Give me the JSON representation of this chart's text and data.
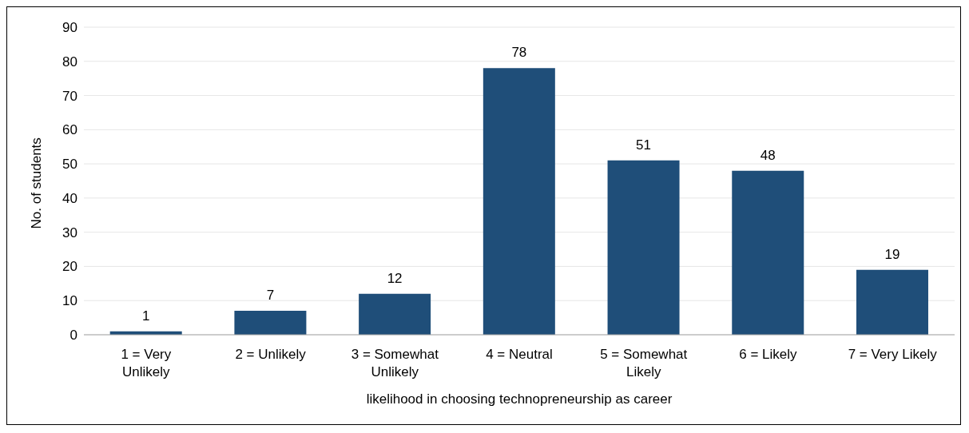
{
  "chart_data": {
    "type": "bar",
    "xlabel": "likelihood in choosing technopreneurship as career",
    "ylabel": "No. of students",
    "categories": [
      "1 = Very Unlikely",
      "2 = Unlikely",
      "3 = Somewhat Unlikely",
      "4 = Neutral",
      "5 = Somewhat Likely",
      "6 = Likely",
      "7 = Very Likely"
    ],
    "values": [
      1,
      7,
      12,
      78,
      51,
      48,
      19
    ],
    "color": "#1f4e79",
    "ylim": [
      0,
      90
    ],
    "yticks": [
      0,
      10,
      20,
      30,
      40,
      50,
      60,
      70,
      80,
      90
    ],
    "grid": "y",
    "data_labels": true
  }
}
